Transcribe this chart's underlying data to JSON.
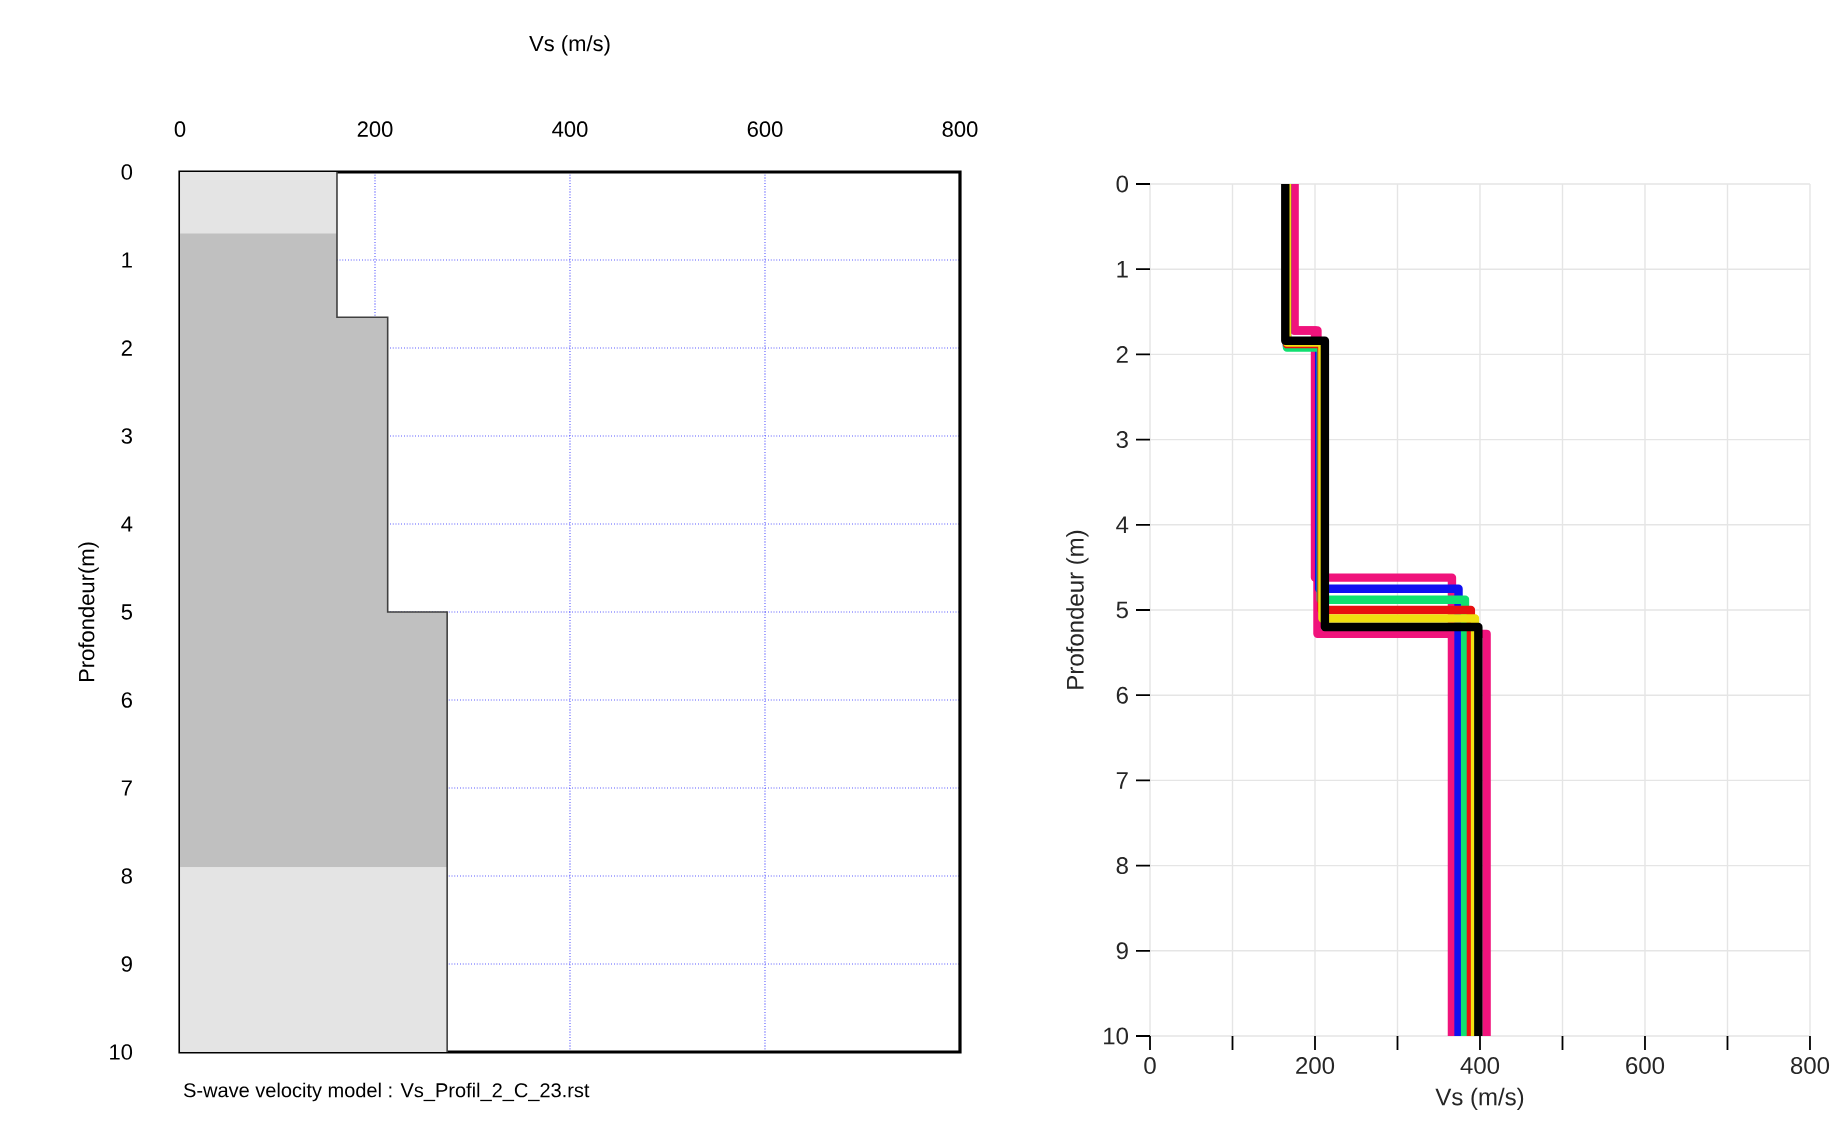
{
  "chart_data": [
    {
      "type": "line",
      "xlabel": "Vs (m/s)",
      "ylabel": "Profondeur(m)",
      "xlim": [
        0,
        800
      ],
      "xticks": [
        0,
        200,
        400,
        600,
        800
      ],
      "ylim": [
        10,
        0
      ],
      "yticks": [
        0,
        1,
        2,
        3,
        4,
        5,
        6,
        7,
        8,
        9,
        10
      ],
      "grid": true,
      "series": [
        {
          "color": "#404040",
          "x": [
            161,
            161,
            213,
            213,
            274,
            274
          ],
          "values": [
            0,
            1.65,
            1.65,
            5.0,
            5.0,
            10
          ]
        }
      ],
      "bands": [
        {
          "axis": "y",
          "from": 0,
          "to": 10,
          "color": "#e4e4e4"
        },
        {
          "axis": "y",
          "from": 0.7,
          "to": 7.9,
          "color": "#c0c0c0"
        }
      ],
      "annotations": [
        "S-wave velocity model : Vs_Profil_2_C_23.rst"
      ]
    },
    {
      "type": "line",
      "xlabel": "Vs (m/s)",
      "ylabel": "Profondeur (m)",
      "xlim": [
        0,
        800
      ],
      "xticks": [
        0,
        {
          "value": 100,
          "label": null
        },
        200,
        {
          "value": 300,
          "label": null
        },
        400,
        {
          "value": 500,
          "label": null
        },
        600,
        {
          "value": 700,
          "label": null
        },
        800
      ],
      "ylim": [
        10,
        0
      ],
      "yticks": [
        0,
        1,
        2,
        3,
        4,
        5,
        6,
        7,
        8,
        9,
        10
      ],
      "grid": true,
      "series": [
        {
          "color": "#f0137c",
          "x": [
            175,
            175,
            203,
            203,
            408,
            408
          ],
          "values": [
            0,
            1.72,
            1.72,
            5.28,
            5.28,
            10
          ]
        },
        {
          "color": "#f0137c",
          "x": [
            175,
            175,
            200,
            200,
            366,
            366
          ],
          "values": [
            0,
            1.72,
            1.72,
            4.62,
            4.62,
            10
          ]
        },
        {
          "color": "#1010f0",
          "x": [
            166,
            166,
            205,
            205,
            374,
            374
          ],
          "values": [
            0,
            1.9,
            1.9,
            4.75,
            4.75,
            10
          ]
        },
        {
          "color": "#10e070",
          "x": [
            166,
            166,
            207,
            207,
            382,
            382
          ],
          "values": [
            0,
            1.92,
            1.92,
            4.88,
            4.88,
            10
          ]
        },
        {
          "color": "#e81010",
          "x": [
            166,
            166,
            208,
            208,
            389,
            389
          ],
          "values": [
            0,
            1.88,
            1.88,
            5.0,
            5.0,
            10
          ]
        },
        {
          "color": "#f0e010",
          "x": [
            166,
            166,
            209,
            209,
            394,
            394
          ],
          "values": [
            0,
            1.86,
            1.86,
            5.1,
            5.1,
            10
          ]
        },
        {
          "color": "#000000",
          "x": [
            164,
            164,
            212,
            212,
            398,
            398
          ],
          "values": [
            0,
            1.84,
            1.84,
            5.2,
            5.2,
            10
          ]
        }
      ]
    }
  ]
}
